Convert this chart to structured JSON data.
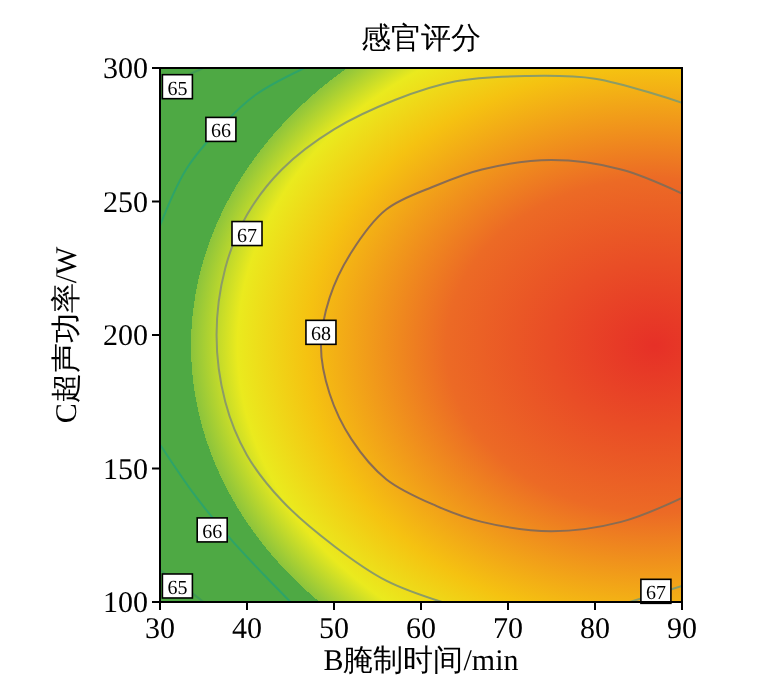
{
  "chart_data": {
    "type": "line",
    "title": "感官评分",
    "xlabel": "B腌制时间/min",
    "ylabel": "C超声功率/W",
    "xlim": [
      30,
      90
    ],
    "ylim": [
      100,
      300
    ],
    "xticks": [
      30,
      40,
      50,
      60,
      70,
      80,
      90
    ],
    "yticks": [
      100,
      150,
      200,
      250,
      300
    ],
    "series": [
      {
        "color": "#3f9a55",
        "x": [
          30,
          32,
          35
        ],
        "values": [
          288,
          295,
          300
        ]
      },
      {
        "color": "#3f9a55",
        "x": [
          30,
          33,
          35
        ],
        "values": [
          112,
          105,
          100
        ]
      },
      {
        "color": "#2ea468",
        "x": [
          30,
          33,
          37,
          41,
          46.6
        ],
        "values": [
          241,
          262,
          278,
          290,
          300
        ]
      },
      {
        "color": "#2ea468",
        "x": [
          30,
          34,
          38,
          42,
          45
        ],
        "values": [
          159,
          140,
          124,
          110,
          100
        ]
      },
      {
        "color": "#8c9c66",
        "x": [
          62.4,
          56,
          50,
          44,
          40,
          37.5,
          36.5,
          37.5,
          40,
          44,
          50,
          57,
          64,
          72,
          80,
          90
        ],
        "values": [
          100,
          108,
          121,
          138,
          155,
          175,
          200,
          225,
          245,
          262,
          277,
          288,
          295,
          297,
          296,
          287
        ]
      },
      {
        "color": "#8c9c66",
        "x": [
          84,
          87,
          90
        ],
        "values": [
          100,
          103,
          106
        ]
      },
      {
        "color": "#8a6c52",
        "x": [
          90,
          83,
          75,
          67,
          61.75,
          56,
          52,
          49.5,
          48.5,
          49.5,
          52,
          56,
          61.75,
          67,
          75,
          83,
          90
        ],
        "values": [
          253,
          262,
          265.5,
          262,
          256,
          247,
          231,
          214,
          196,
          178,
          161,
          146,
          136,
          130,
          126.5,
          130,
          139
        ]
      }
    ],
    "annotations": [
      {
        "text": "65",
        "x": 32,
        "y": 293
      },
      {
        "text": "66",
        "x": 37,
        "y": 277
      },
      {
        "text": "67",
        "x": 40,
        "y": 238
      },
      {
        "text": "68",
        "x": 48.5,
        "y": 201
      },
      {
        "text": "66",
        "x": 36,
        "y": 127
      },
      {
        "text": "65",
        "x": 32,
        "y": 106
      },
      {
        "text": "67",
        "x": 87,
        "y": 104
      }
    ]
  }
}
